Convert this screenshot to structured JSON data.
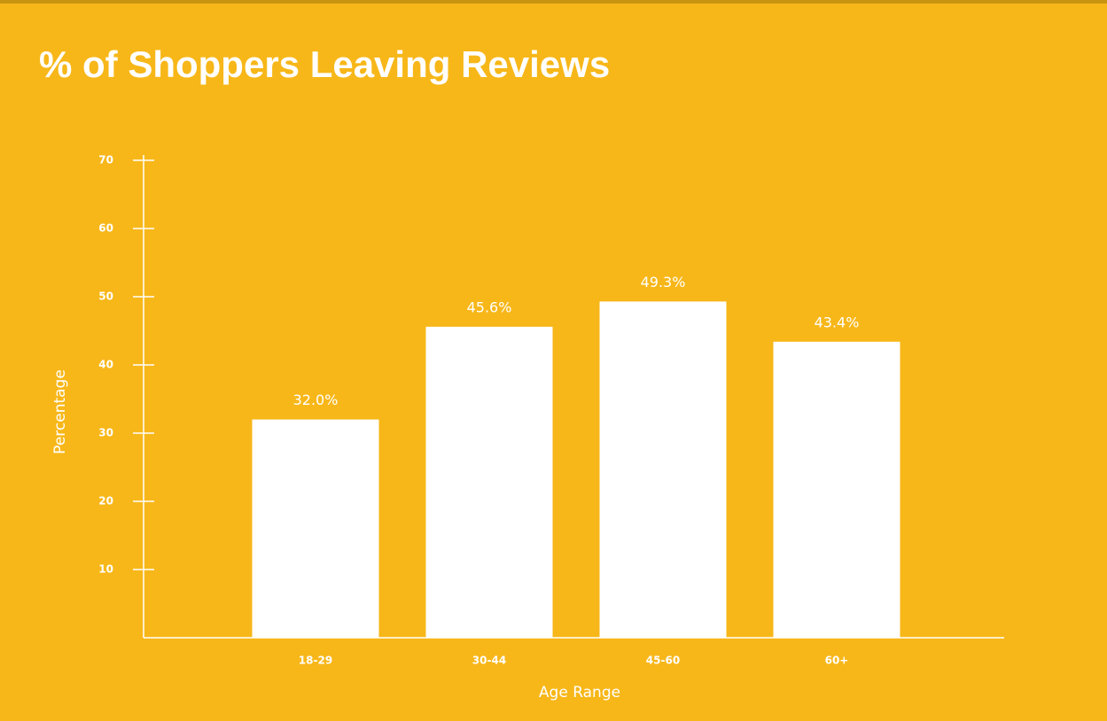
{
  "chart_data": {
    "type": "bar",
    "title": "% of Shoppers Leaving Reviews",
    "x_label": "Age Range",
    "y_label": "Percentage",
    "categories": [
      "18-29",
      "30-44",
      "45-60",
      "60+"
    ],
    "values": [
      32.0,
      45.6,
      49.3,
      43.4
    ],
    "value_labels": [
      "32.0%",
      "45.6%",
      "49.3%",
      "43.4%"
    ],
    "color": "#ffffff",
    "ylim": [
      0,
      70
    ],
    "yticks": [
      10,
      20,
      30,
      40,
      50,
      60,
      70
    ],
    "grid": false
  }
}
